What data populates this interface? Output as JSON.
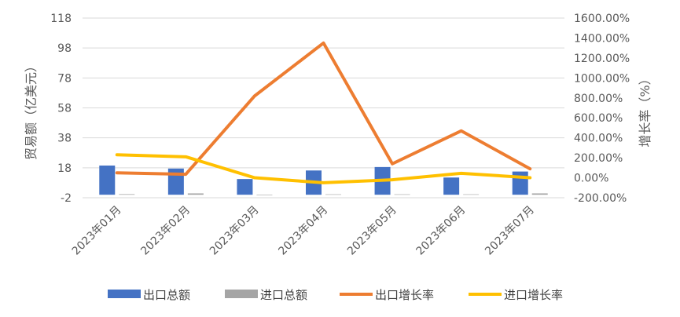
{
  "chart_data": {
    "type": "bar",
    "categories": [
      "2023年01月",
      "2023年02月",
      "2023年03月",
      "2023年04月",
      "2023年05月",
      "2023年06月",
      "2023年07月"
    ],
    "series": [
      {
        "name": "出口总额",
        "type": "bar",
        "axis": "left",
        "color": "#4472C4",
        "values": [
          19.5,
          17.5,
          10.5,
          16.2,
          18.5,
          11.5,
          15.5
        ]
      },
      {
        "name": "进口总额",
        "type": "bar",
        "axis": "left",
        "color": "#A5A5A5",
        "values": [
          0.4,
          0.9,
          0.0,
          0.3,
          0.3,
          0.3,
          0.9
        ]
      },
      {
        "name": "出口增长率",
        "type": "line",
        "axis": "right",
        "color": "#ED7D31",
        "values": [
          50,
          35,
          820,
          1350,
          140,
          470,
          90
        ]
      },
      {
        "name": "进口增长率",
        "type": "line",
        "axis": "right",
        "color": "#FFC000",
        "values": [
          230,
          210,
          0,
          -50,
          -20,
          45,
          0
        ]
      }
    ],
    "ylabel": "贸易额（亿美元）",
    "y2label": "增长率（%）",
    "ylim": [
      -2,
      118
    ],
    "yticks": [
      -2,
      18,
      38,
      58,
      78,
      98,
      118
    ],
    "y2lim": [
      -200,
      1600
    ],
    "y2ticks": [
      "-200.00%",
      "0.00%",
      "200.00%",
      "400.00%",
      "600.00%",
      "800.00%",
      "1000.00%",
      "1200.00%",
      "1400.00%",
      "1600.00%"
    ],
    "grid": true,
    "legend": "bottom"
  }
}
